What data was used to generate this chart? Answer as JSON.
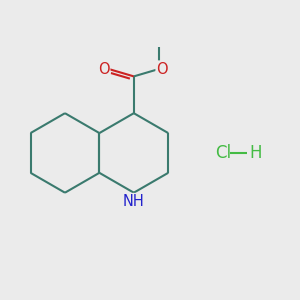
{
  "bg_color": "#EBEBEB",
  "bond_color": "#3a7a6e",
  "nh_color": "#2222cc",
  "o_color": "#cc2222",
  "cl_color": "#44bb44",
  "line_width": 1.5,
  "fig_size": [
    3.0,
    3.0
  ],
  "dpi": 100,
  "xlim": [
    0,
    10
  ],
  "ylim": [
    0,
    10
  ]
}
